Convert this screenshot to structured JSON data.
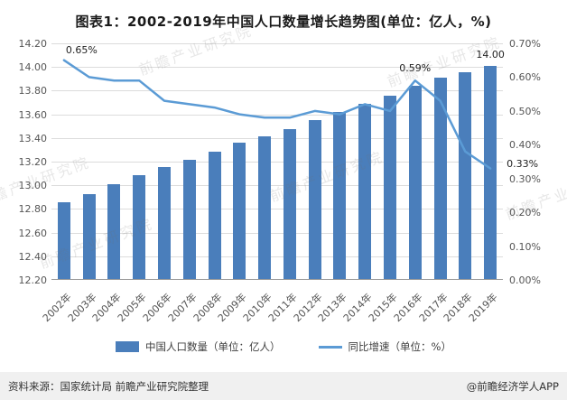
{
  "title": "图表1：2002-2019年中国人口数量增长趋势图(单位：亿人，%)",
  "watermark": "前瞻产业研究院",
  "chart_data": {
    "type": "combo",
    "title": "图表1：2002-2019年中国人口数量增长趋势图(单位：亿人，%)",
    "categories": [
      "2002年",
      "2003年",
      "2004年",
      "2005年",
      "2006年",
      "2007年",
      "2008年",
      "2009年",
      "2010年",
      "2011年",
      "2012年",
      "2013年",
      "2014年",
      "2015年",
      "2016年",
      "2017年",
      "2018年",
      "2019年"
    ],
    "series": [
      {
        "name": "中国人口数量（单位：亿人）",
        "type": "bar",
        "axis": "left",
        "values": [
          12.85,
          12.92,
          13.0,
          13.08,
          13.15,
          13.21,
          13.28,
          13.35,
          13.41,
          13.47,
          13.54,
          13.61,
          13.68,
          13.75,
          13.83,
          13.9,
          13.95,
          14.0
        ]
      },
      {
        "name": "同比增速（单位：%）",
        "type": "line",
        "axis": "right",
        "values": [
          0.65,
          0.6,
          0.59,
          0.59,
          0.53,
          0.52,
          0.51,
          0.49,
          0.48,
          0.48,
          0.5,
          0.49,
          0.52,
          0.5,
          0.59,
          0.53,
          0.38,
          0.33
        ]
      }
    ],
    "left_axis": {
      "min": 12.2,
      "max": 14.2,
      "step": 0.2,
      "labels": [
        "14.20",
        "14.00",
        "13.80",
        "13.60",
        "13.40",
        "13.20",
        "13.00",
        "12.80",
        "12.60",
        "12.40",
        "12.20"
      ]
    },
    "right_axis": {
      "min": 0.0,
      "max": 0.7,
      "step": 0.1,
      "labels": [
        "0.70%",
        "0.60%",
        "0.50%",
        "0.40%",
        "0.30%",
        "0.20%",
        "0.10%",
        "0.00%"
      ]
    },
    "annotations": [
      {
        "text": "0.65%",
        "x_index": 0,
        "value": 0.65,
        "axis": "right",
        "placement": "above-right"
      },
      {
        "text": "0.59%",
        "x_index": 14,
        "value": 0.59,
        "axis": "right",
        "placement": "above"
      },
      {
        "text": "14.00",
        "x_index": 17,
        "value": 14.0,
        "axis": "left",
        "placement": "above"
      },
      {
        "text": "0.33%",
        "x_index": 17,
        "value": 0.33,
        "axis": "right",
        "placement": "right"
      }
    ],
    "colors": {
      "bar": "#4a7ebb",
      "line": "#5b9bd5"
    },
    "grid": true,
    "legend_position": "bottom"
  },
  "legend": [
    {
      "label": "中国人口数量（单位：亿人）"
    },
    {
      "label": "同比增速（单位：%）"
    }
  ],
  "footer": {
    "source": "资料来源：国家统计局 前瞻产业研究院整理",
    "brand": "@前瞻经济学人APP"
  }
}
